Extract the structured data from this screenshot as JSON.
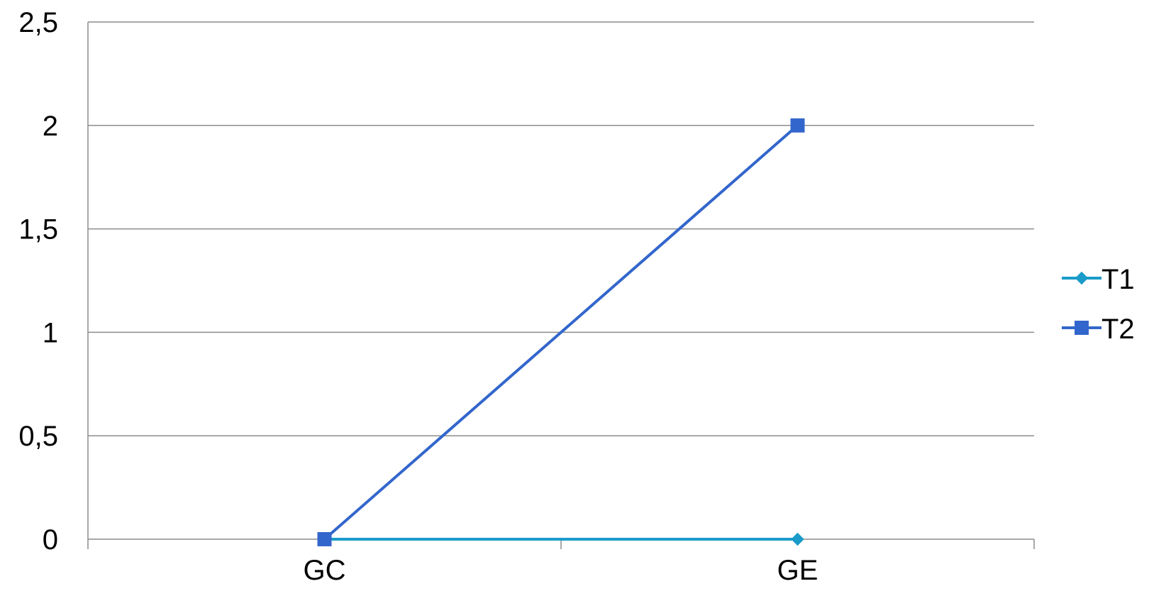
{
  "chart_data": {
    "type": "line",
    "categories": [
      "GC",
      "GE"
    ],
    "y_ticks": [
      "0",
      "0,5",
      "1",
      "1,5",
      "2",
      "2,5"
    ],
    "ylim": [
      0,
      2.5
    ],
    "grid": true,
    "legend_position": "right",
    "series": [
      {
        "name": "T1",
        "values": [
          0,
          0
        ],
        "color": "#1a9bc9",
        "marker": "diamond"
      },
      {
        "name": "T2",
        "values": [
          0,
          2
        ],
        "color": "#3366cc",
        "marker": "square"
      }
    ]
  }
}
